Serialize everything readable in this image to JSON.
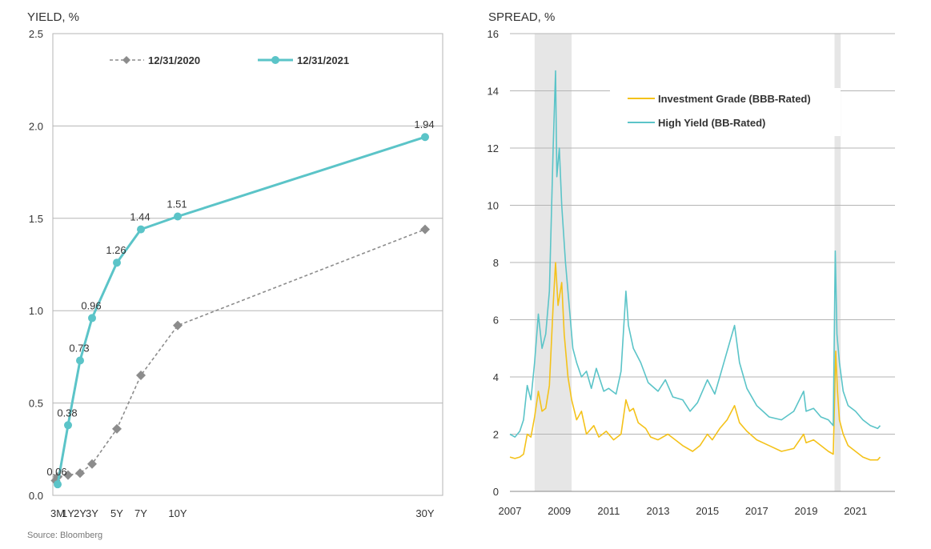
{
  "source": "Source: Bloomberg",
  "chart_data": [
    {
      "type": "line",
      "ylabel": "YIELD, %",
      "ylim": [
        0,
        2.5
      ],
      "yticks": [
        "0.0",
        "0.5",
        "1.0",
        "1.5",
        "2.0",
        "2.5"
      ],
      "categories": [
        "3M",
        "1Y",
        "2Y",
        "3Y",
        "5Y",
        "7Y",
        "10Y",
        "30Y"
      ],
      "x_years": [
        0.25,
        1,
        2,
        3,
        5,
        7,
        10,
        30
      ],
      "xticks": [
        "3M",
        "1Y",
        "2Y",
        "3Y",
        "5Y",
        "7Y",
        "10Y",
        "30Y"
      ],
      "grid": true,
      "legend_position": "top",
      "series": [
        {
          "name": "12/31/2020",
          "values": [
            0.08,
            0.1,
            0.11,
            0.12,
            0.17,
            0.36,
            0.65,
            0.92,
            1.44
          ],
          "x": [
            0.1,
            0.25,
            1,
            2,
            3,
            5,
            7,
            10,
            30
          ],
          "color": "#8c8c8c",
          "style": "dashed",
          "marker": "diamond"
        },
        {
          "name": "12/31/2021",
          "values": [
            0.06,
            0.38,
            0.73,
            0.96,
            1.26,
            1.44,
            1.51,
            1.94
          ],
          "x": [
            0.25,
            1,
            2,
            3,
            5,
            7,
            10,
            30
          ],
          "labels": [
            "0.06",
            "0.38",
            "0.73",
            "0.96",
            "1.26",
            "1.44",
            "1.51",
            "1.94"
          ],
          "color": "#5bc4c8",
          "style": "solid",
          "marker": "circle"
        }
      ]
    },
    {
      "type": "line",
      "ylabel": "SPREAD, %",
      "ylim": [
        0,
        16
      ],
      "yticks": [
        "0",
        "2",
        "4",
        "6",
        "8",
        "10",
        "12",
        "14",
        "16"
      ],
      "xlim": [
        2007,
        2022.3
      ],
      "xticks": [
        "2007",
        "2009",
        "2011",
        "2013",
        "2015",
        "2017",
        "2019",
        "2021"
      ],
      "grid": true,
      "legend_position": "top-right",
      "recession_shading": [
        [
          2008.0,
          2009.5
        ],
        [
          2020.15,
          2020.4
        ]
      ],
      "series": [
        {
          "name": "Investment Grade (BBB-Rated)",
          "color": "#f4c21a",
          "x": [
            2007.0,
            2007.2,
            2007.4,
            2007.55,
            2007.7,
            2007.85,
            2008.0,
            2008.15,
            2008.3,
            2008.45,
            2008.6,
            2008.75,
            2008.85,
            2008.95,
            2009.1,
            2009.2,
            2009.35,
            2009.5,
            2009.7,
            2009.9,
            2010.1,
            2010.4,
            2010.6,
            2010.9,
            2011.2,
            2011.5,
            2011.7,
            2011.85,
            2012.0,
            2012.2,
            2012.5,
            2012.7,
            2013.0,
            2013.4,
            2013.7,
            2014.0,
            2014.4,
            2014.7,
            2015.0,
            2015.2,
            2015.5,
            2015.8,
            2016.1,
            2016.3,
            2016.6,
            2017.0,
            2017.5,
            2018.0,
            2018.5,
            2018.9,
            2019.0,
            2019.3,
            2019.6,
            2019.9,
            2020.1,
            2020.2,
            2020.27,
            2020.35,
            2020.5,
            2020.7,
            2021.0,
            2021.3,
            2021.6,
            2021.9,
            2022.0
          ],
          "values": [
            1.2,
            1.15,
            1.2,
            1.3,
            2.0,
            1.9,
            2.6,
            3.5,
            2.8,
            2.9,
            3.7,
            6.5,
            8.0,
            6.5,
            7.3,
            5.5,
            4.0,
            3.2,
            2.5,
            2.8,
            2.0,
            2.3,
            1.9,
            2.1,
            1.8,
            2.0,
            3.2,
            2.8,
            2.9,
            2.4,
            2.2,
            1.9,
            1.8,
            2.0,
            1.8,
            1.6,
            1.4,
            1.6,
            2.0,
            1.8,
            2.2,
            2.5,
            3.0,
            2.4,
            2.1,
            1.8,
            1.6,
            1.4,
            1.5,
            2.0,
            1.7,
            1.8,
            1.6,
            1.4,
            1.3,
            4.9,
            3.5,
            2.5,
            2.0,
            1.6,
            1.4,
            1.2,
            1.1,
            1.1,
            1.2
          ]
        },
        {
          "name": "High Yield (BB-Rated)",
          "color": "#5bc4c8",
          "x": [
            2007.0,
            2007.2,
            2007.4,
            2007.55,
            2007.7,
            2007.85,
            2008.0,
            2008.15,
            2008.3,
            2008.45,
            2008.6,
            2008.75,
            2008.85,
            2008.9,
            2009.0,
            2009.1,
            2009.25,
            2009.4,
            2009.55,
            2009.7,
            2009.9,
            2010.1,
            2010.3,
            2010.5,
            2010.8,
            2011.0,
            2011.3,
            2011.5,
            2011.7,
            2011.8,
            2012.0,
            2012.3,
            2012.6,
            2013.0,
            2013.3,
            2013.6,
            2014.0,
            2014.3,
            2014.6,
            2015.0,
            2015.3,
            2015.6,
            2015.9,
            2016.1,
            2016.3,
            2016.6,
            2017.0,
            2017.5,
            2018.0,
            2018.5,
            2018.9,
            2019.0,
            2019.3,
            2019.6,
            2019.9,
            2020.1,
            2020.18,
            2020.25,
            2020.35,
            2020.5,
            2020.7,
            2021.0,
            2021.3,
            2021.6,
            2021.9,
            2022.0
          ],
          "values": [
            2.0,
            1.9,
            2.1,
            2.5,
            3.7,
            3.2,
            4.5,
            6.2,
            5.0,
            5.5,
            7.0,
            12.0,
            14.7,
            11.0,
            12.0,
            10.0,
            8.0,
            6.5,
            5.0,
            4.5,
            4.0,
            4.2,
            3.6,
            4.3,
            3.5,
            3.6,
            3.4,
            4.2,
            7.0,
            5.8,
            5.0,
            4.5,
            3.8,
            3.5,
            3.9,
            3.3,
            3.2,
            2.8,
            3.1,
            3.9,
            3.4,
            4.3,
            5.2,
            5.8,
            4.5,
            3.6,
            3.0,
            2.6,
            2.5,
            2.8,
            3.5,
            2.8,
            2.9,
            2.6,
            2.5,
            2.3,
            8.4,
            5.5,
            4.5,
            3.5,
            3.0,
            2.8,
            2.5,
            2.3,
            2.2,
            2.3
          ]
        }
      ]
    }
  ]
}
